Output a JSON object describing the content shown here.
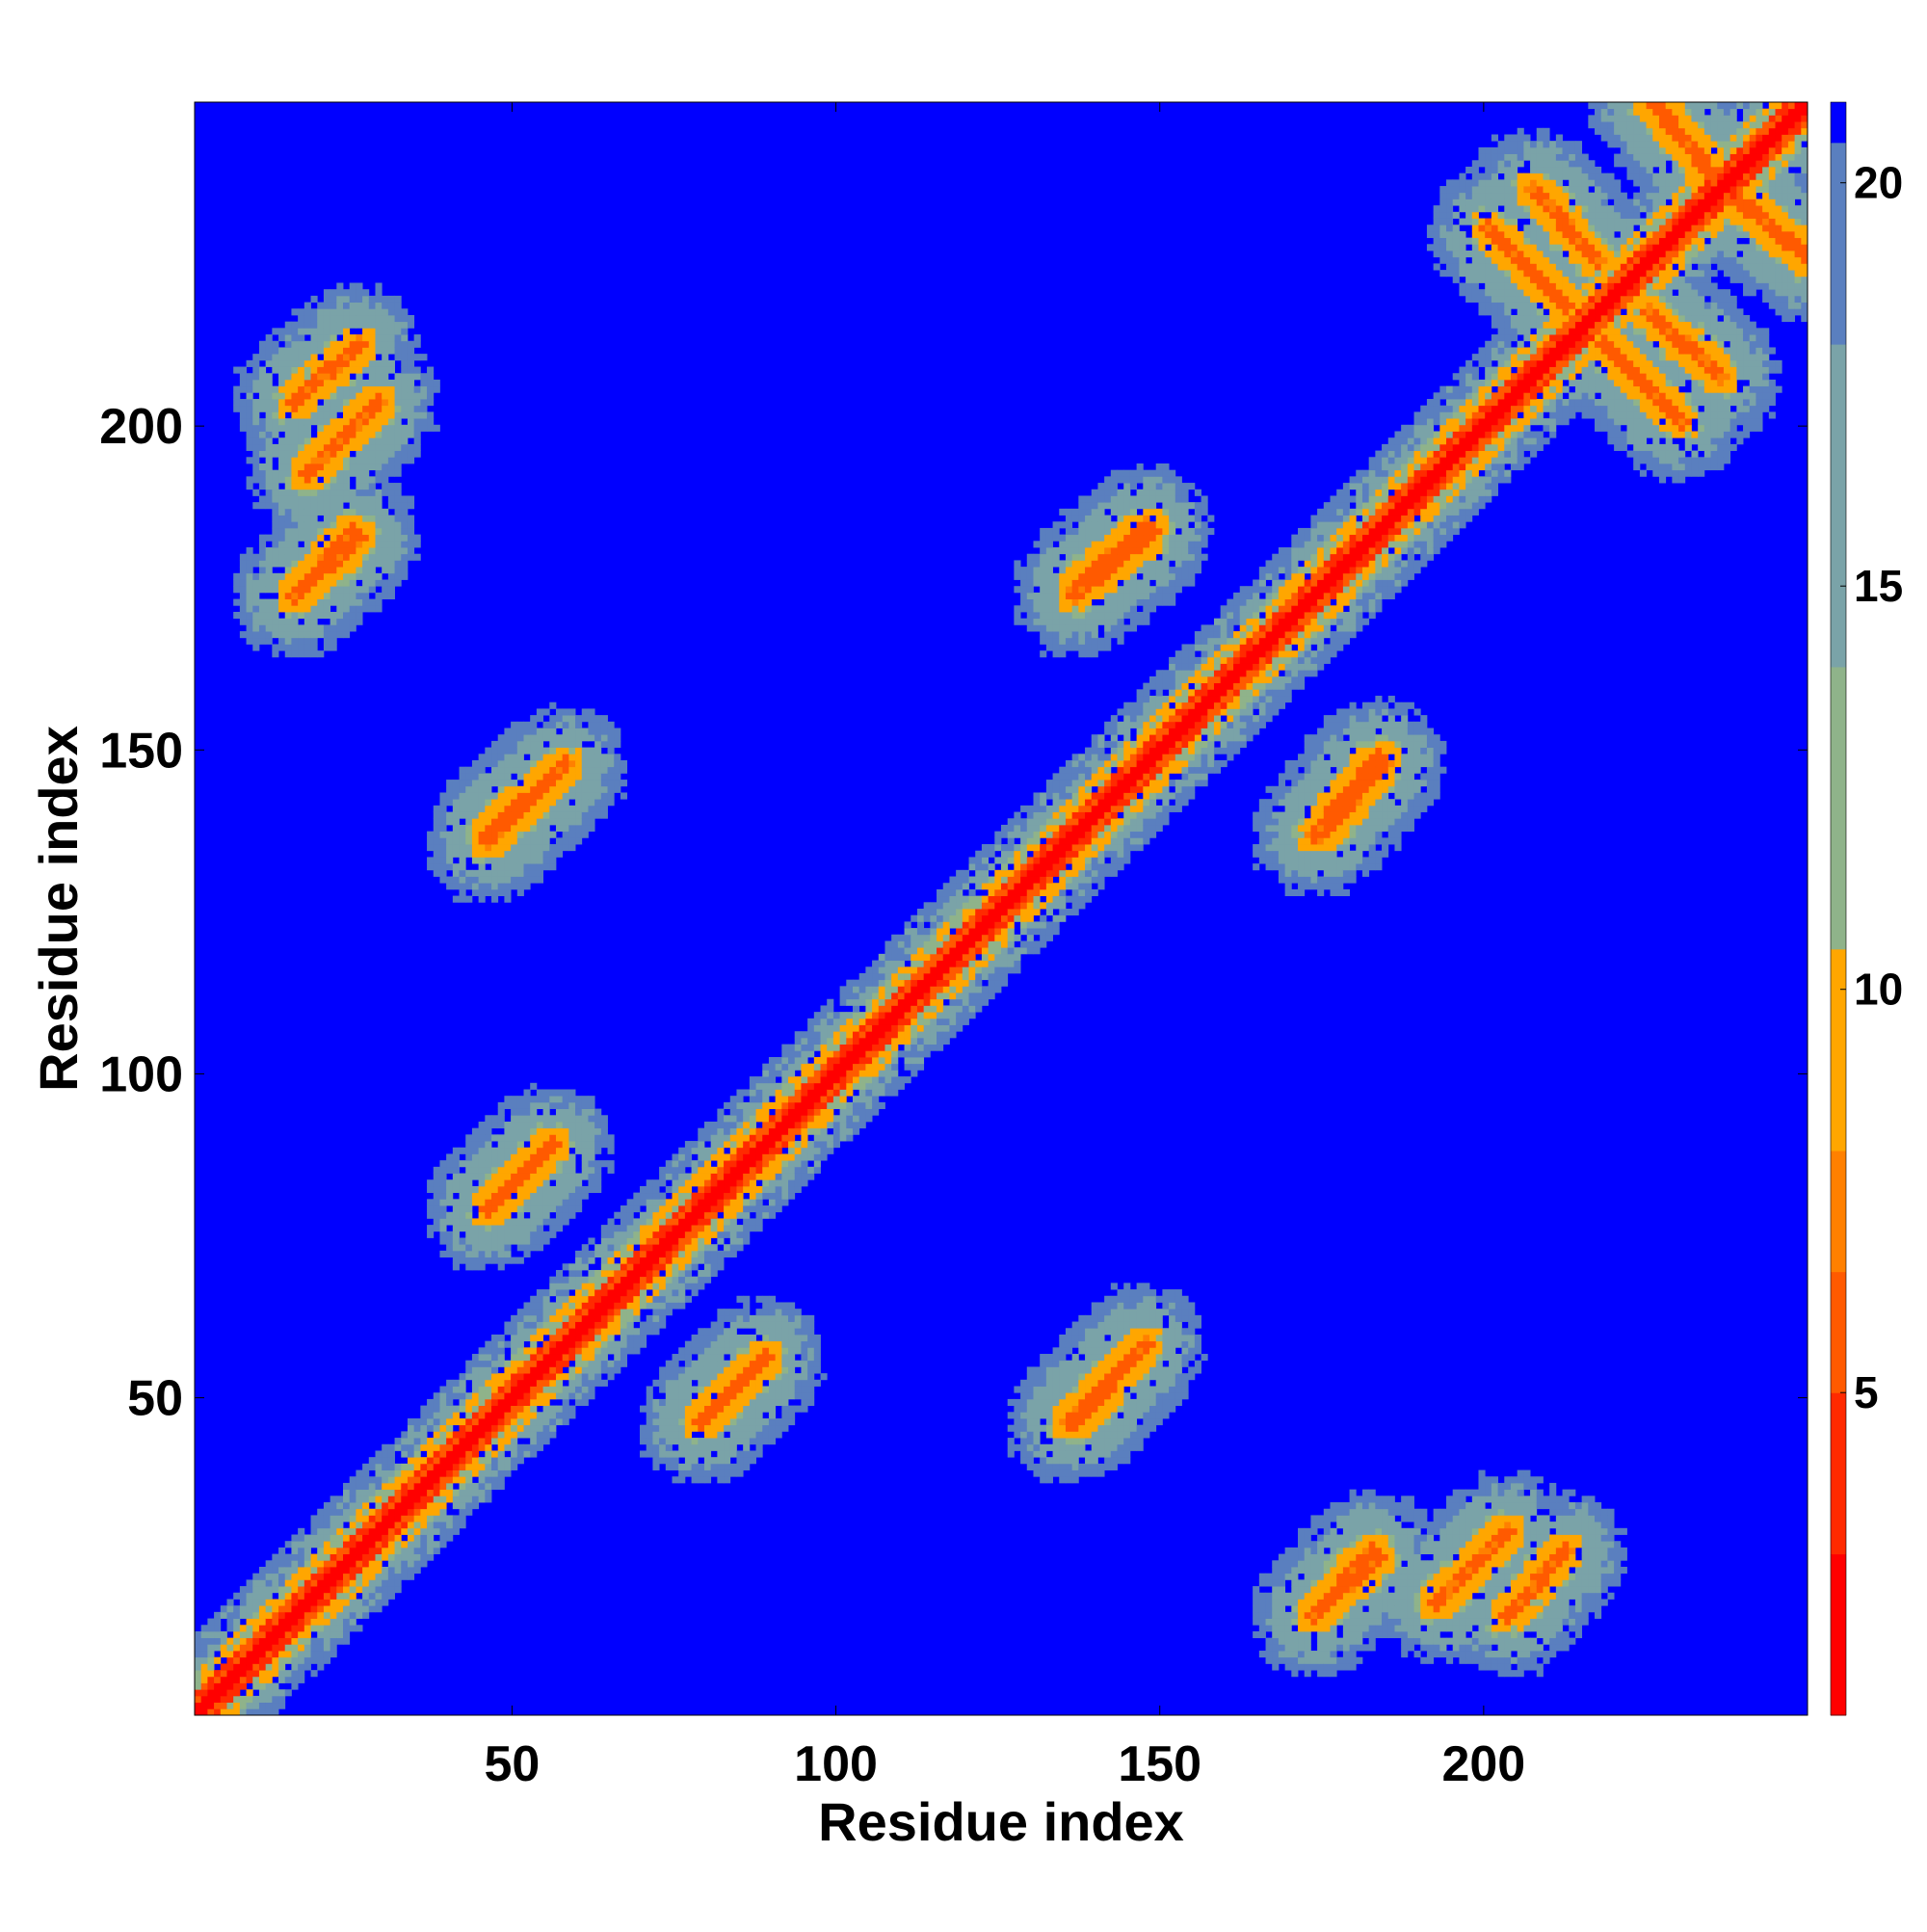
{
  "chart_data": {
    "type": "heatmap",
    "title": "",
    "xlabel": "Residue index",
    "ylabel": "Residue index",
    "n_residues": 250,
    "xlim": [
      1,
      250
    ],
    "ylim": [
      1,
      250
    ],
    "x_ticks": [
      50,
      100,
      150,
      200
    ],
    "y_ticks": [
      50,
      100,
      150,
      200
    ],
    "grid": false,
    "colorbar": {
      "range": [
        1,
        21
      ],
      "ticks": [
        5,
        10,
        15,
        20
      ],
      "colors": [
        "#ff0000",
        "#ff2a00",
        "#ff5a00",
        "#ff8000",
        "#ffa600",
        "#8fb38a",
        "#7aa3a8",
        "#5a7fbf",
        "#0000ff"
      ],
      "stops": [
        1,
        3,
        5,
        6.5,
        8,
        10.5,
        14,
        18,
        20.5,
        21
      ]
    },
    "diagonal_band": {
      "description_free": true,
      "half_width_residues": 3,
      "value_center": 1,
      "value_edge": 6
    },
    "off_diagonal_contacts": [
      {
        "x": [
          17,
          28
        ],
        "y": [
          192,
          203
        ],
        "orientation": "parallel"
      },
      {
        "x": [
          15,
          24
        ],
        "y": [
          173,
          183
        ],
        "orientation": "parallel"
      },
      {
        "x": [
          45,
          57
        ],
        "y": [
          135,
          147
        ],
        "orientation": "parallel"
      },
      {
        "x": [
          45,
          55
        ],
        "y": [
          78,
          88
        ],
        "orientation": "parallel"
      },
      {
        "x": [
          78,
          86
        ],
        "y": [
          45,
          53
        ],
        "orientation": "parallel"
      },
      {
        "x": [
          136,
          145
        ],
        "y": [
          45,
          55
        ],
        "orientation": "parallel"
      },
      {
        "x": [
          136,
          147
        ],
        "y": [
          174,
          184
        ],
        "orientation": "parallel"
      },
      {
        "x": [
          173,
          183
        ],
        "y": [
          136,
          148
        ],
        "orientation": "parallel"
      },
      {
        "x": [
          173,
          182
        ],
        "y": [
          15,
          25
        ],
        "orientation": "parallel"
      },
      {
        "x": [
          203,
          212
        ],
        "y": [
          15,
          25
        ],
        "orientation": "parallel"
      },
      {
        "x": [
          207,
          217
        ],
        "y": [
          225,
          236
        ],
        "orientation": "antiparallel"
      },
      {
        "x": [
          218,
          230
        ],
        "y": [
          200,
          212
        ],
        "orientation": "antiparallel"
      },
      {
        "x": [
          225,
          236
        ],
        "y": [
          237,
          250
        ],
        "orientation": "antiparallel"
      },
      {
        "x": [
          237,
          250
        ],
        "y": [
          225,
          236
        ],
        "orientation": "antiparallel"
      }
    ]
  }
}
